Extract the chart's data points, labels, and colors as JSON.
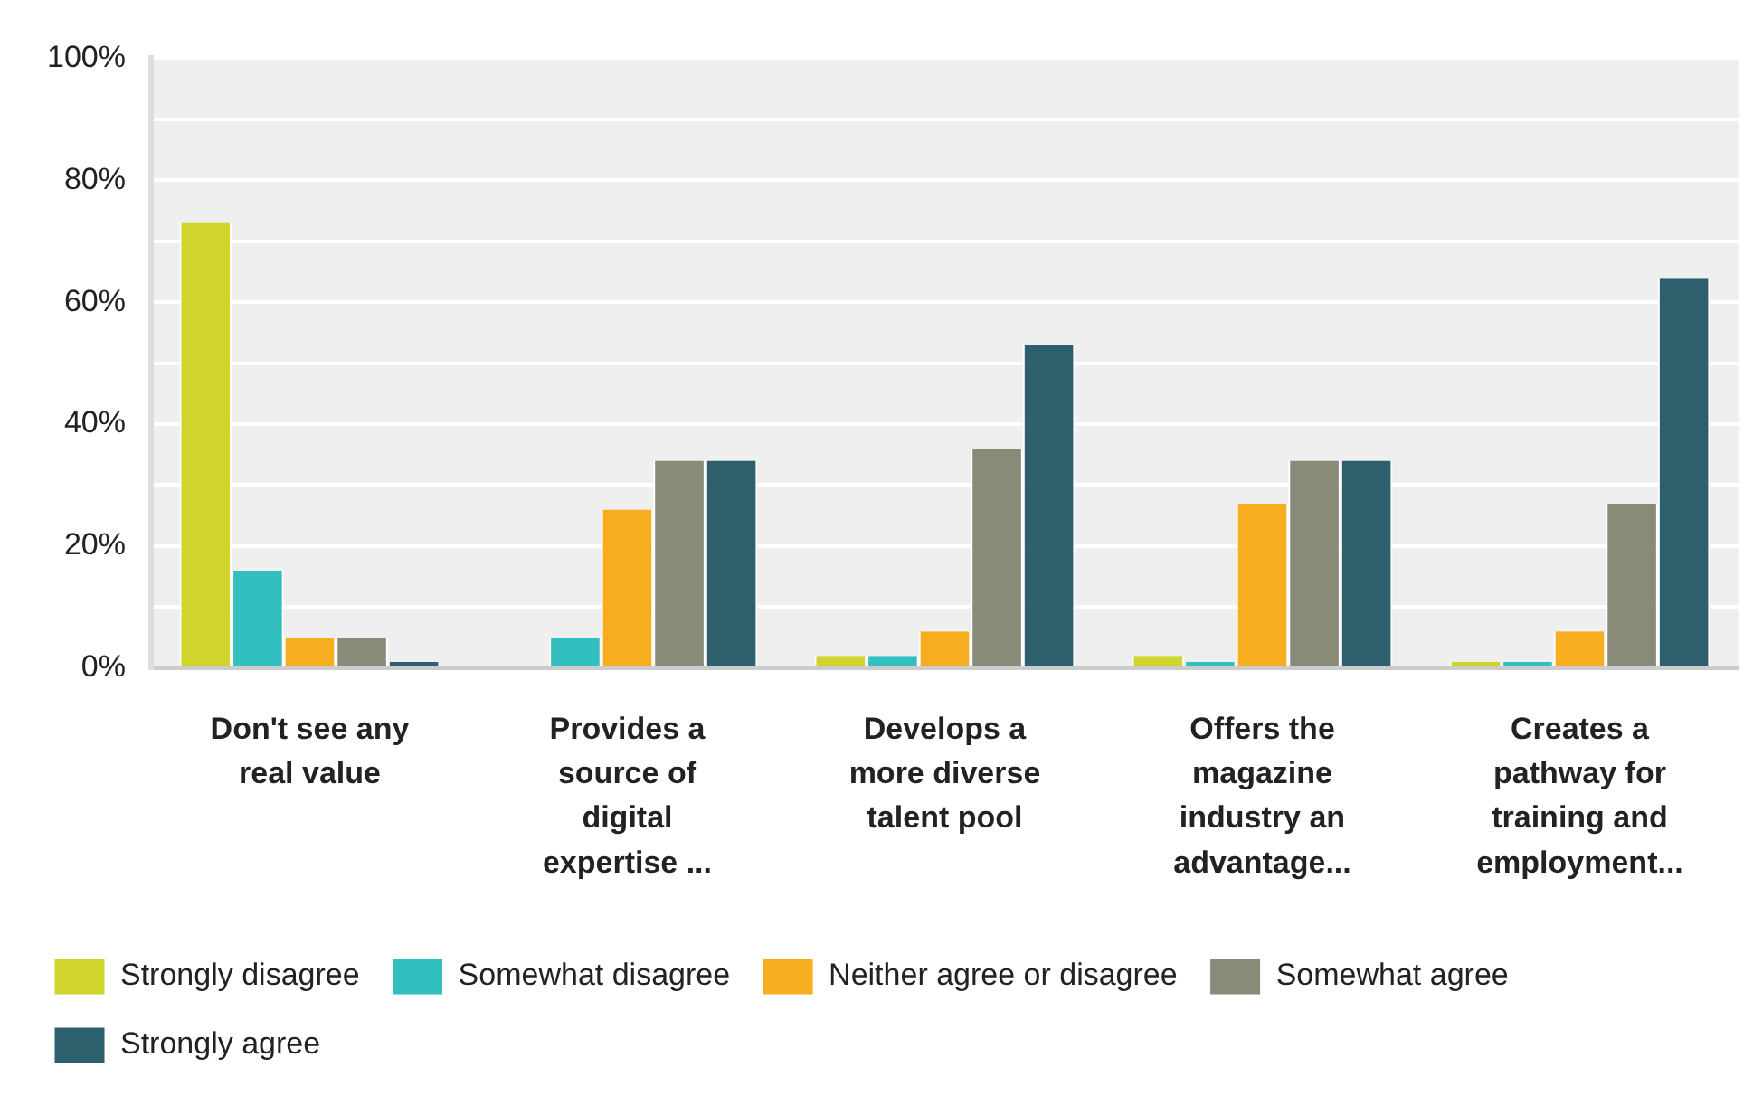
{
  "chart_data": {
    "type": "bar",
    "categories": [
      "Don't see any real value",
      "Provides a source of digital expertise ...",
      "Develops a more diverse talent pool",
      "Offers the magazine industry an advantage...",
      "Creates a pathway for training and employment..."
    ],
    "series": [
      {
        "name": "Strongly disagree",
        "color": "#cfd52a",
        "values": [
          73,
          0,
          2,
          2,
          1
        ]
      },
      {
        "name": "Somewhat disagree",
        "color": "#33bec0",
        "values": [
          16,
          5,
          2,
          1,
          1
        ]
      },
      {
        "name": "Neither agree or disagree",
        "color": "#f6ad1f",
        "values": [
          5,
          26,
          6,
          27,
          6
        ]
      },
      {
        "name": "Somewhat agree",
        "color": "#8a8a79",
        "values": [
          5,
          34,
          36,
          34,
          27
        ]
      },
      {
        "name": "Strongly agree",
        "color": "#2e5f6d",
        "values": [
          1,
          34,
          53,
          34,
          64
        ]
      }
    ],
    "ylim": [
      0,
      100
    ],
    "yticks": [
      {
        "value": 0,
        "label": "0%"
      },
      {
        "value": 10,
        "label": null
      },
      {
        "value": 20,
        "label": "20%"
      },
      {
        "value": 30,
        "label": null
      },
      {
        "value": 40,
        "label": "40%"
      },
      {
        "value": 50,
        "label": null
      },
      {
        "value": 60,
        "label": "60%"
      },
      {
        "value": 70,
        "label": null
      },
      {
        "value": 80,
        "label": "80%"
      },
      {
        "value": 90,
        "label": null
      },
      {
        "value": 100,
        "label": "100%"
      }
    ],
    "grid": "y",
    "legend": "bottom"
  }
}
